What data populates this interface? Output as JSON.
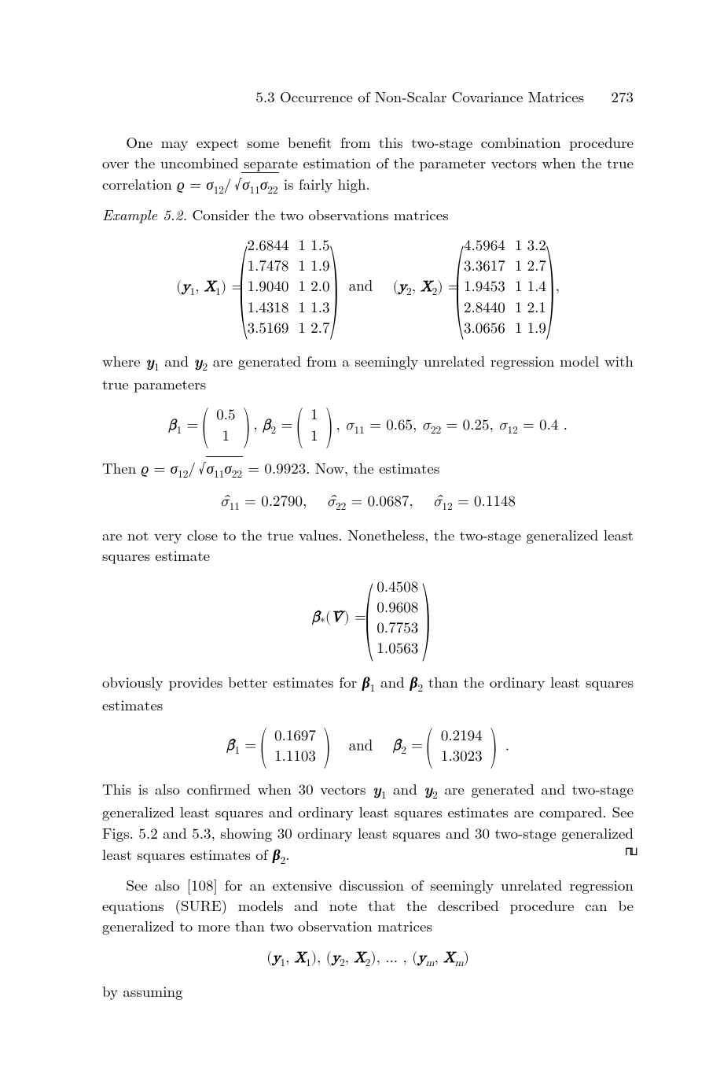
{
  "header": {
    "section": "5.3  Occurrence of Non-Scalar Covariance Matrices",
    "page": "273"
  },
  "p1": "One may expect some benefit from this two-stage combination procedure over the uncombined separate estimation of the parameter vectors when the true correlation ",
  "p1b": " is fairly high.",
  "rho_def": "ϱ = σ₁₂ / √(σ₁₁σ₂₂)",
  "example_label": "Example 5.2.",
  "example_text": " Consider the two observations matrices",
  "matrices": {
    "left_label": "( y₁ , X₁ ) =",
    "right_label": "( y₂ , X₂ ) =",
    "and": "and",
    "m1": [
      [
        "2.6844",
        "1",
        "1.5"
      ],
      [
        "1.7478",
        "1",
        "1.9"
      ],
      [
        "1.9040",
        "1",
        "2.0"
      ],
      [
        "1.4318",
        "1",
        "1.3"
      ],
      [
        "3.5169",
        "1",
        "2.7"
      ]
    ],
    "m2": [
      [
        "4.5964",
        "1",
        "3.2"
      ],
      [
        "3.3617",
        "1",
        "2.7"
      ],
      [
        "1.9453",
        "1",
        "1.4"
      ],
      [
        "2.8440",
        "1",
        "2.1"
      ],
      [
        "3.0656",
        "1",
        "1.9"
      ]
    ],
    "trail": ","
  },
  "p2a": "where ",
  "p2b": " and ",
  "p2c": " are generated from a seemingly unrelated regression model with true parameters",
  "y1": "y₁",
  "y2": "y₂",
  "true_params": {
    "beta1": [
      "0.5",
      "1"
    ],
    "beta2": [
      "1",
      "1"
    ],
    "sigmas": ", σ₁₁ = 0.65, σ₂₂ = 0.25, σ₁₂ = 0.4 ."
  },
  "p3a": "Then ",
  "rho_val": "ϱ = σ₁₂ / √(σ₁₁σ₂₂) = 0.9923",
  "p3b": ". Now, the estimates",
  "sigma_hats": "σ̂₁₁ = 0.2790,    σ̂₂₂ = 0.0687,    σ̂₁₂ = 0.1148",
  "p4": "are not very close to the true values. Nonetheless, the two-stage generalized least squares estimate",
  "beta_star": {
    "label": "β̂*(V̂) =",
    "vals": [
      "0.4508",
      "0.9608",
      "0.7753",
      "1.0563"
    ]
  },
  "p5a": "obviously provides better estimates for ",
  "p5b": " and ",
  "p5c": " than the ordinary least squares estimates",
  "b1": "β₁",
  "b2": "β₂",
  "ols": {
    "b1": [
      "0.1697",
      "1.1103"
    ],
    "b2": [
      "0.2194",
      "1.3023"
    ],
    "and": "and",
    "trail": "."
  },
  "p6a": "This is also confirmed when 30 vectors ",
  "p6b": " and ",
  "p6c": " are generated and two-stage generalized least squares and ordinary least squares estimates are compared. See Figs. 5.2 and 5.3, showing 30 ordinary least squares and 30 two-stage generalized least squares estimates of ",
  "p6d": ".",
  "qed": "⊓⊔",
  "p7": "See also [108] for an extensive discussion of seemingly unrelated regression equations (SURE) models and note that the described procedure can be generalized to more than two observation matrices",
  "seq": "( y₁ , X₁ ), ( y₂ , X₂ ), … , ( yₘ , Xₘ )",
  "p8": "by assuming"
}
